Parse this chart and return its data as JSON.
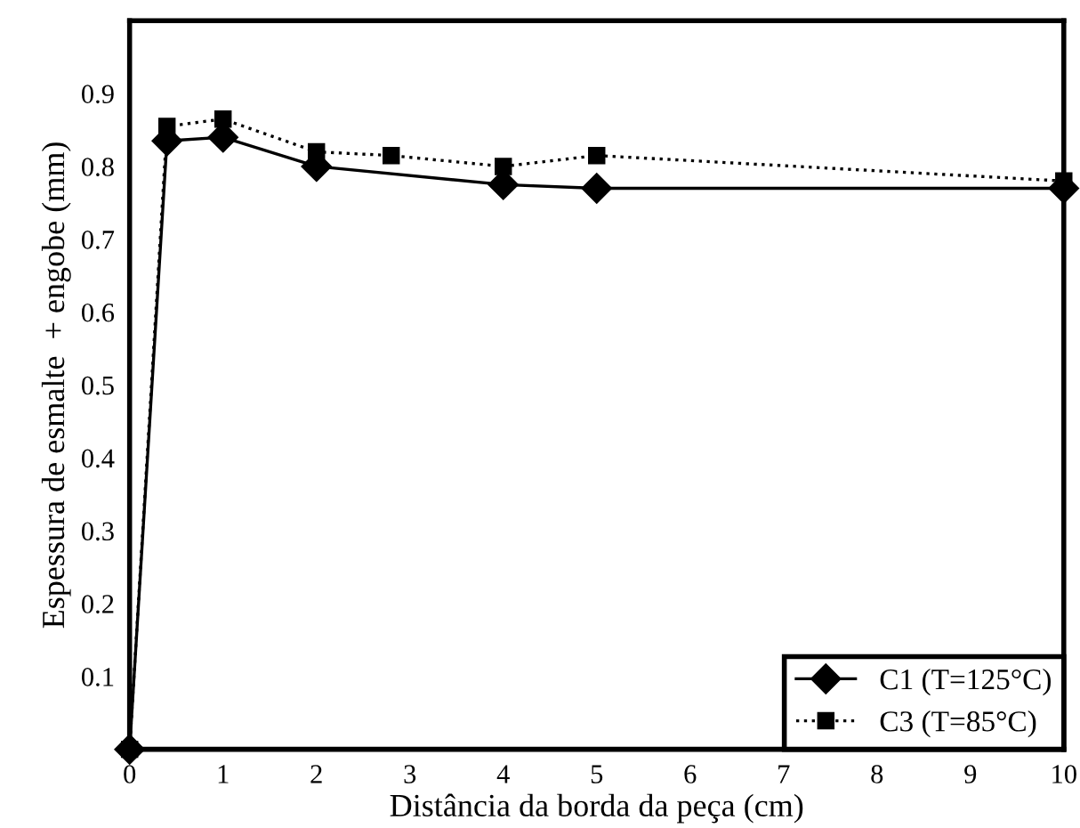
{
  "chart_data": {
    "type": "line",
    "xlabel": "Distância da borda da peça (cm)",
    "ylabel": "Espessura de esmalte  + engobe (mm)",
    "xlim": [
      0,
      10
    ],
    "xticks": [
      0,
      1,
      2,
      3,
      4,
      5,
      6,
      7,
      8,
      9,
      10
    ],
    "ylim": [
      0,
      1
    ],
    "yticks": [
      0.1,
      0.2,
      0.3,
      0.4,
      0.5,
      0.6,
      0.7,
      0.8,
      0.9
    ],
    "grid": false,
    "legend": "bottom right",
    "series": [
      {
        "name": "C1 (T=125°C)",
        "color": "#000000",
        "marker": "diamond",
        "line_style": "solid",
        "x": [
          0,
          0.4,
          1,
          2,
          4,
          5,
          10
        ],
        "values": [
          0,
          0.835,
          0.84,
          0.8,
          0.775,
          0.77,
          0.77
        ]
      },
      {
        "name": "C3 (T=85°C)",
        "color": "#000000",
        "marker": "square",
        "line_style": "dotted",
        "x": [
          0,
          0.4,
          1,
          2,
          2.8,
          4,
          5,
          10
        ],
        "values": [
          0,
          0.855,
          0.865,
          0.82,
          0.815,
          0.8,
          0.815,
          0.78
        ]
      }
    ]
  }
}
